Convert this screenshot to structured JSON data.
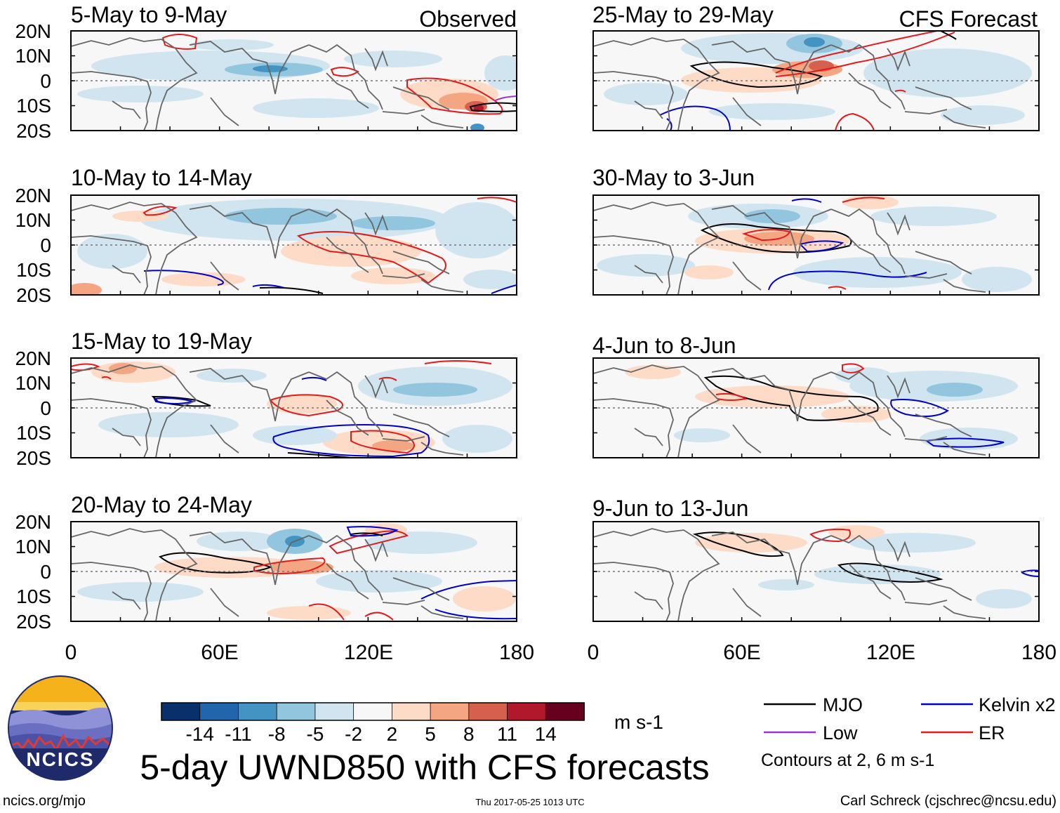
{
  "panels": [
    {
      "id": "p1",
      "period": "5-May to 9-May",
      "corner_label": "Observed",
      "column": "left",
      "row": 0
    },
    {
      "id": "p2",
      "period": "10-May to 14-May",
      "corner_label": "",
      "column": "left",
      "row": 1
    },
    {
      "id": "p3",
      "period": "15-May to 19-May",
      "corner_label": "",
      "column": "left",
      "row": 2
    },
    {
      "id": "p4",
      "period": "20-May to 24-May",
      "corner_label": "",
      "column": "left",
      "row": 3
    },
    {
      "id": "p5",
      "period": "25-May to 29-May",
      "corner_label": "CFS Forecast",
      "column": "right",
      "row": 0
    },
    {
      "id": "p6",
      "period": "30-May to 3-Jun",
      "corner_label": "",
      "column": "right",
      "row": 1
    },
    {
      "id": "p7",
      "period": "4-Jun to 8-Jun",
      "corner_label": "",
      "column": "right",
      "row": 2
    },
    {
      "id": "p8",
      "period": "9-Jun to 13-Jun",
      "corner_label": "",
      "column": "right",
      "row": 3
    }
  ],
  "lat_ticks": [
    "20N",
    "10N",
    "0",
    "10S",
    "20S"
  ],
  "lon_ticks": [
    "0",
    "60E",
    "120E",
    "180"
  ],
  "colorbar": {
    "levels": [
      "-14",
      "-11",
      "-8",
      "-5",
      "-2",
      "2",
      "5",
      "8",
      "11",
      "14"
    ],
    "colors": [
      "#08306b",
      "#2166ac",
      "#4393c3",
      "#92c5de",
      "#d1e5f0",
      "#f7f7f7",
      "#fddbc7",
      "#f4a582",
      "#d6604d",
      "#b2182b",
      "#67001f"
    ],
    "units": "m s-1"
  },
  "title": "5-day UWND850 with CFS forecasts",
  "legend": {
    "items": [
      {
        "label": "MJO",
        "color": "#000000"
      },
      {
        "label": "Kelvin x2",
        "color": "#0000cc"
      },
      {
        "label": "Low",
        "color": "#9933cc"
      },
      {
        "label": "ER",
        "color": "#e31a1c"
      }
    ],
    "note": "Contours at 2, 6 m s-1"
  },
  "logo": {
    "text": "NCICS"
  },
  "footer": {
    "site": "ncics.org/mjo",
    "timestamp": "Thu 2017-05-25 1013 UTC",
    "credit": "Carl Schreck (cjschrec@ncsu.edu)"
  }
}
